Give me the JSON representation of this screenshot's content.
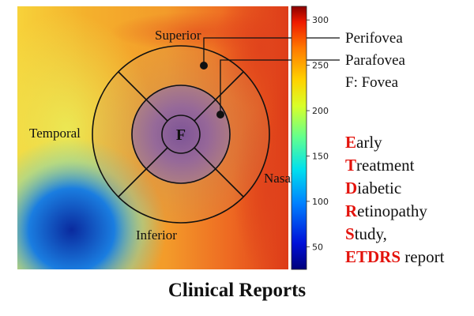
{
  "diagram": {
    "regions": {
      "superior": "Superior",
      "inferior": "Inferior",
      "temporal": "Temporal",
      "nasal": "Nasal",
      "fovea_center": "F"
    },
    "legend": {
      "perifovea": "Perifovea",
      "parafovea": "Parafovea",
      "fovea": "F: Fovea"
    },
    "colorbar": {
      "ticks": [
        300,
        250,
        200,
        150,
        100,
        50
      ],
      "min": 25,
      "max": 315
    },
    "etdrs": [
      {
        "initial": "E",
        "rest": "arly"
      },
      {
        "initial": "T",
        "rest": "reatment"
      },
      {
        "initial": "D",
        "rest": "iabetic"
      },
      {
        "initial": "R",
        "rest": "etinopathy"
      },
      {
        "initial": "S",
        "rest": "tudy,"
      },
      {
        "initial": "ETDRS",
        "rest": " report"
      }
    ],
    "title": "Clinical Reports"
  },
  "colors": {
    "accent_red": "#e3120b",
    "ring_stroke": "#111111"
  }
}
